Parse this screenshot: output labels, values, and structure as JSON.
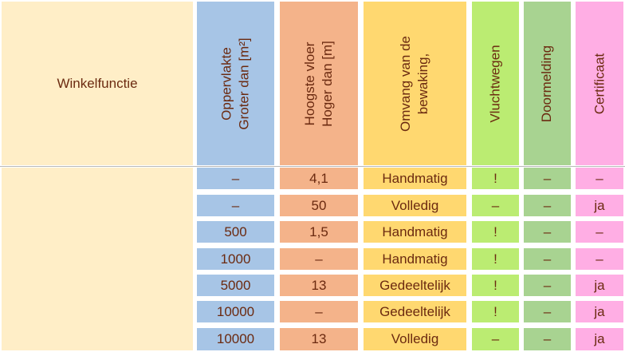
{
  "header": {
    "function": "Winkelfunctie",
    "area": [
      "Oppervlakte",
      "Groter dan [m²]"
    ],
    "floor": [
      "Hoogste vloer",
      "Hoger dan [m]"
    ],
    "scope": [
      "Omvang van de",
      "bewaking,"
    ],
    "escape": "Vluchtwegen",
    "transmission": "Doormelding",
    "certificate": "Certificaat"
  },
  "rows": [
    {
      "area": "–",
      "floor": "4,1",
      "scope": "Handmatig",
      "escape": "!",
      "transmission": "–",
      "certificate": "–"
    },
    {
      "area": "–",
      "floor": "50",
      "scope": "Volledig",
      "escape": "–",
      "transmission": "–",
      "certificate": "ja"
    },
    {
      "area": "500",
      "floor": "1,5",
      "scope": "Handmatig",
      "escape": "!",
      "transmission": "–",
      "certificate": "–"
    },
    {
      "area": "1000",
      "floor": "–",
      "scope": "Handmatig",
      "escape": "!",
      "transmission": "–",
      "certificate": "–"
    },
    {
      "area": "5000",
      "floor": "13",
      "scope": "Gedeeltelijk",
      "escape": "!",
      "transmission": "–",
      "certificate": "ja"
    },
    {
      "area": "10000",
      "floor": "–",
      "scope": "Gedeeltelijk",
      "escape": "!",
      "transmission": "–",
      "certificate": "ja"
    },
    {
      "area": "10000",
      "floor": "13",
      "scope": "Volledig",
      "escape": "–",
      "transmission": "–",
      "certificate": "ja"
    }
  ],
  "colors": {
    "text": "#6b2a10",
    "function": "#ffeec7",
    "area": "#a7c5e6",
    "floor": "#f4b38a",
    "scope": "#ffd870",
    "escape": "#bbec72",
    "transmission": "#a8d391",
    "certificate": "#ffaee4"
  }
}
